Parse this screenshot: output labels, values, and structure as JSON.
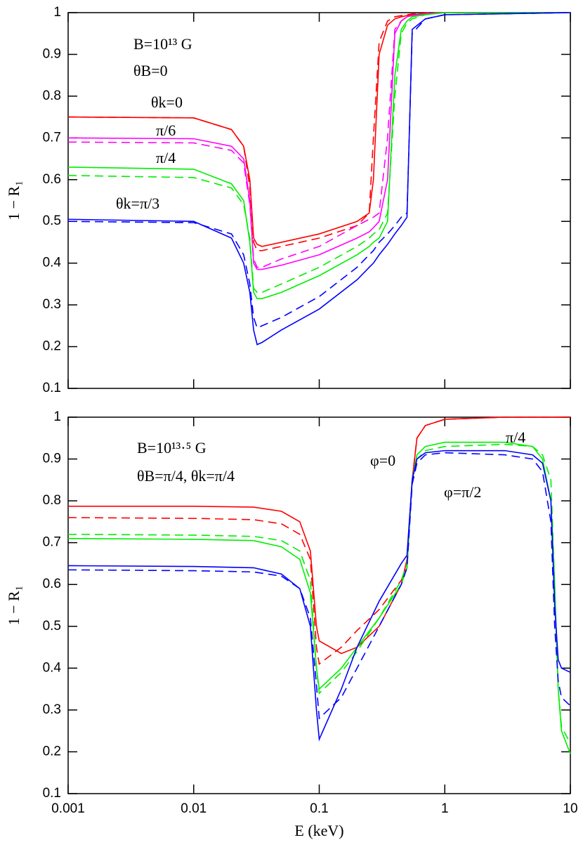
{
  "chart_data": [
    {
      "type": "line",
      "xlog": true,
      "xtick_labels": false,
      "ylabel": "1 − R₁",
      "xlim": [
        0.001,
        10
      ],
      "ylim": [
        0.1,
        1
      ],
      "xticks": [
        0.001,
        0.01,
        0.1,
        1,
        10
      ],
      "yticks": [
        0.1,
        0.2,
        0.3,
        0.4,
        0.5,
        0.6,
        0.7,
        0.8,
        0.9,
        1
      ],
      "annotations": [
        {
          "text": "B=10¹³ G",
          "color": "#000000"
        },
        {
          "text": "θB=0",
          "color": "#000000"
        },
        {
          "text": "θk=0",
          "color": "#ff0000"
        },
        {
          "text": "π/6",
          "color": "#ff00ff"
        },
        {
          "text": "π/4",
          "color": "#00ee00"
        },
        {
          "text": "θk=π/3",
          "color": "#0000ff"
        }
      ],
      "x": [
        0.001,
        0.01,
        0.02,
        0.025,
        0.028,
        0.03,
        0.032,
        0.035,
        0.05,
        0.1,
        0.2,
        0.25,
        0.27,
        0.3,
        0.35,
        0.4,
        0.45,
        0.5,
        0.55,
        0.7,
        1,
        10
      ],
      "series": [
        {
          "color": "#ff0000",
          "dash": false,
          "values": [
            0.75,
            0.748,
            0.72,
            0.68,
            0.6,
            0.46,
            0.445,
            0.44,
            0.45,
            0.47,
            0.5,
            0.52,
            0.6,
            0.9,
            0.97,
            0.985,
            0.99,
            0.993,
            0.995,
            0.998,
            1,
            1
          ]
        },
        {
          "color": "#ff0000",
          "dash": true,
          "values": [
            0.75,
            0.748,
            0.72,
            0.68,
            0.58,
            0.45,
            0.43,
            0.43,
            0.44,
            0.46,
            0.49,
            0.52,
            0.7,
            0.93,
            0.98,
            0.99,
            0.993,
            0.995,
            0.997,
            0.999,
            1,
            1
          ]
        },
        {
          "color": "#ff00ff",
          "dash": false,
          "values": [
            0.7,
            0.698,
            0.68,
            0.65,
            0.55,
            0.4,
            0.385,
            0.385,
            0.395,
            0.42,
            0.46,
            0.475,
            0.485,
            0.5,
            0.6,
            0.95,
            0.98,
            0.99,
            0.993,
            0.997,
            1,
            1
          ]
        },
        {
          "color": "#ff00ff",
          "dash": true,
          "values": [
            0.69,
            0.688,
            0.67,
            0.64,
            0.54,
            0.41,
            0.39,
            0.39,
            0.41,
            0.44,
            0.49,
            0.505,
            0.51,
            0.52,
            0.7,
            0.96,
            0.98,
            0.99,
            0.993,
            0.997,
            1,
            1
          ]
        },
        {
          "color": "#00ee00",
          "dash": false,
          "values": [
            0.63,
            0.625,
            0.59,
            0.55,
            0.45,
            0.33,
            0.315,
            0.315,
            0.33,
            0.37,
            0.42,
            0.44,
            0.45,
            0.46,
            0.5,
            0.85,
            0.96,
            0.98,
            0.99,
            0.995,
            1,
            1
          ]
        },
        {
          "color": "#00ee00",
          "dash": true,
          "values": [
            0.61,
            0.605,
            0.58,
            0.54,
            0.46,
            0.34,
            0.33,
            0.33,
            0.35,
            0.39,
            0.44,
            0.46,
            0.47,
            0.48,
            0.52,
            0.8,
            0.95,
            0.975,
            0.985,
            0.995,
            1,
            1
          ]
        },
        {
          "color": "#0000ff",
          "dash": false,
          "values": [
            0.505,
            0.5,
            0.46,
            0.4,
            0.33,
            0.24,
            0.205,
            0.21,
            0.24,
            0.29,
            0.36,
            0.39,
            0.4,
            0.42,
            0.445,
            0.47,
            0.49,
            0.51,
            0.96,
            0.985,
            0.995,
            1
          ]
        },
        {
          "color": "#0000ff",
          "dash": true,
          "values": [
            0.5,
            0.497,
            0.47,
            0.42,
            0.35,
            0.27,
            0.245,
            0.25,
            0.27,
            0.32,
            0.39,
            0.42,
            0.43,
            0.45,
            0.47,
            0.49,
            0.51,
            0.52,
            0.95,
            0.985,
            0.995,
            1
          ]
        }
      ]
    },
    {
      "type": "line",
      "xlog": true,
      "xtick_labels": true,
      "ylabel": "1 − R₁",
      "xlabel": "E  (keV)",
      "xlim": [
        0.001,
        10
      ],
      "ylim": [
        0.1,
        1
      ],
      "xticks": [
        0.001,
        0.01,
        0.1,
        1,
        10
      ],
      "yticks": [
        0.1,
        0.2,
        0.3,
        0.4,
        0.5,
        0.6,
        0.7,
        0.8,
        0.9,
        1
      ],
      "annotations": [
        {
          "text": "B=10¹³·⁵ G",
          "color": "#000000"
        },
        {
          "text": "θB=π/4,  θk=π/4",
          "color": "#000000"
        },
        {
          "text": "φ=0",
          "color": "#ff0000"
        },
        {
          "text": "π/4",
          "color": "#00ee00"
        },
        {
          "text": "φ=π/2",
          "color": "#0000ff"
        }
      ],
      "x": [
        0.001,
        0.01,
        0.03,
        0.05,
        0.07,
        0.085,
        0.095,
        0.1,
        0.15,
        0.2,
        0.3,
        0.45,
        0.5,
        0.55,
        0.6,
        0.7,
        1,
        3,
        5,
        6,
        7,
        7.5,
        8,
        8.5,
        10
      ],
      "series": [
        {
          "color": "#ff0000",
          "dash": false,
          "values": [
            0.787,
            0.787,
            0.785,
            0.775,
            0.75,
            0.68,
            0.5,
            0.465,
            0.435,
            0.45,
            0.5,
            0.6,
            0.66,
            0.85,
            0.95,
            0.98,
            0.995,
            1,
            1,
            1,
            1,
            1,
            1,
            1,
            1
          ]
        },
        {
          "color": "#ff0000",
          "dash": true,
          "values": [
            0.76,
            0.758,
            0.755,
            0.745,
            0.72,
            0.66,
            0.45,
            0.41,
            0.45,
            0.49,
            0.54,
            0.61,
            0.64,
            0.85,
            0.95,
            0.98,
            0.995,
            1,
            1,
            1,
            1,
            1,
            1,
            1,
            1
          ]
        },
        {
          "color": "#00ee00",
          "dash": false,
          "values": [
            0.71,
            0.708,
            0.705,
            0.69,
            0.66,
            0.58,
            0.4,
            0.35,
            0.4,
            0.45,
            0.52,
            0.6,
            0.64,
            0.85,
            0.91,
            0.93,
            0.94,
            0.94,
            0.93,
            0.9,
            0.8,
            0.6,
            0.35,
            0.25,
            0.195
          ]
        },
        {
          "color": "#00ee00",
          "dash": true,
          "values": [
            0.72,
            0.718,
            0.715,
            0.705,
            0.68,
            0.61,
            0.4,
            0.34,
            0.39,
            0.44,
            0.52,
            0.61,
            0.65,
            0.85,
            0.9,
            0.92,
            0.93,
            0.935,
            0.93,
            0.91,
            0.85,
            0.6,
            0.35,
            0.26,
            0.22
          ]
        },
        {
          "color": "#0000ff",
          "dash": false,
          "values": [
            0.645,
            0.643,
            0.64,
            0.625,
            0.59,
            0.5,
            0.3,
            0.23,
            0.35,
            0.45,
            0.56,
            0.65,
            0.67,
            0.85,
            0.9,
            0.915,
            0.92,
            0.92,
            0.91,
            0.89,
            0.8,
            0.55,
            0.42,
            0.4,
            0.39
          ]
        },
        {
          "color": "#0000ff",
          "dash": true,
          "values": [
            0.635,
            0.633,
            0.63,
            0.62,
            0.59,
            0.52,
            0.36,
            0.28,
            0.33,
            0.4,
            0.5,
            0.6,
            0.64,
            0.84,
            0.89,
            0.91,
            0.915,
            0.91,
            0.9,
            0.87,
            0.75,
            0.5,
            0.37,
            0.33,
            0.31
          ]
        }
      ]
    }
  ]
}
